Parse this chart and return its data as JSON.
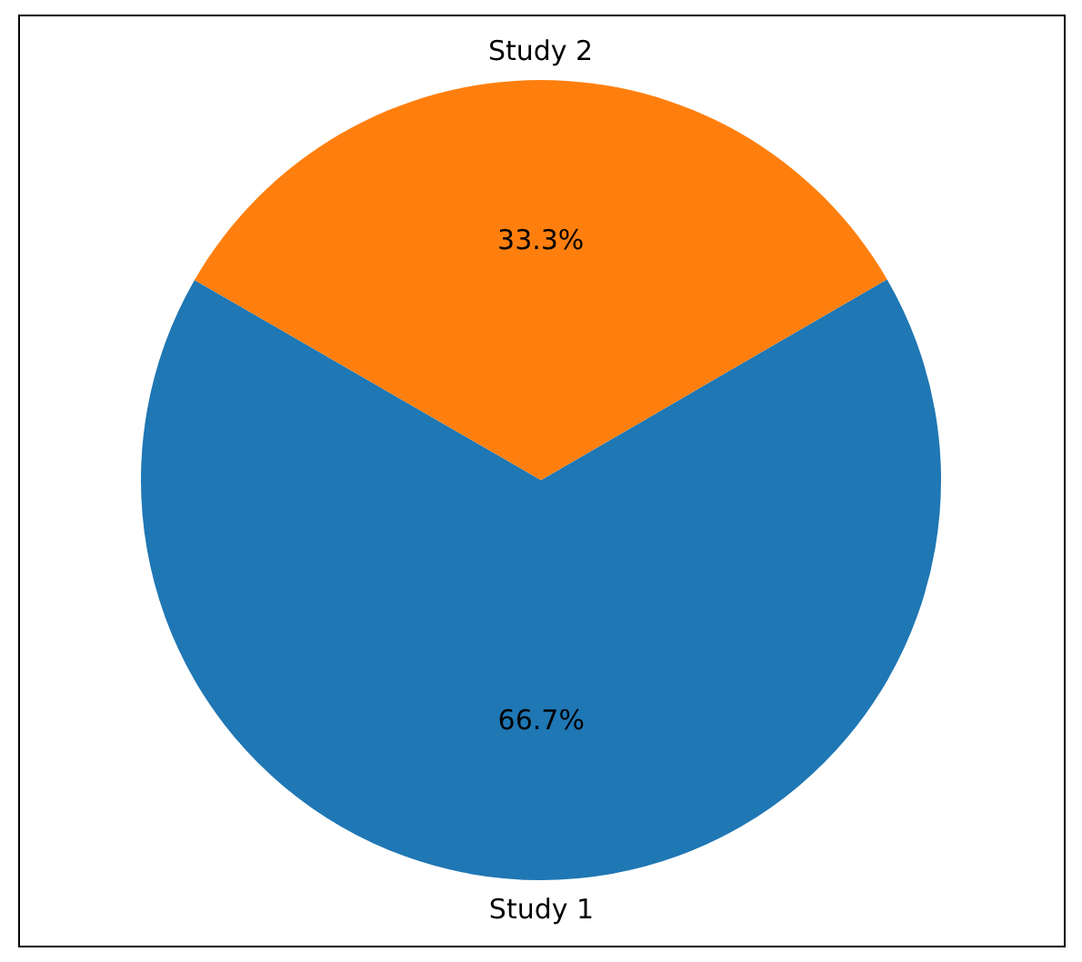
{
  "chart_data": {
    "type": "pie",
    "categories": [
      "Study 1",
      "Study 2"
    ],
    "values": [
      66.7,
      33.3
    ],
    "colors": [
      "#1f77b4",
      "#ff7f0e"
    ],
    "value_labels": [
      "66.7%",
      "33.3%"
    ]
  }
}
